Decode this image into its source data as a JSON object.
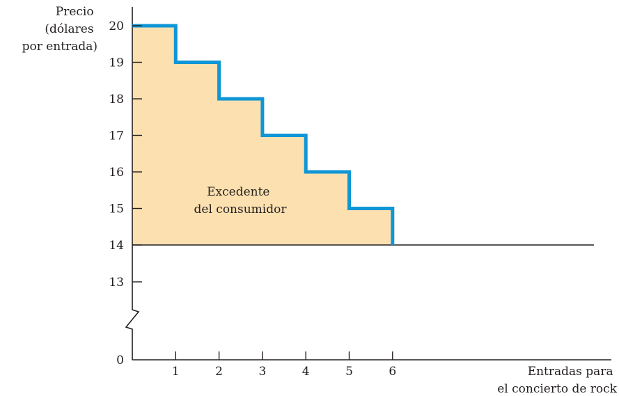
{
  "chart_data": {
    "type": "area",
    "y_axis_title": [
      "Precio",
      "(dólares",
      "por entrada)"
    ],
    "x_axis_title": [
      "Entradas para",
      "el concierto de rock"
    ],
    "area_label": [
      "Excedente",
      "del consumidor"
    ],
    "y_ticks": [
      0,
      13,
      14,
      15,
      16,
      17,
      18,
      19,
      20
    ],
    "x_ticks": [
      1,
      2,
      3,
      4,
      5,
      6
    ],
    "y_axis_break": true,
    "market_price": 14,
    "demand_steps": [
      {
        "from": 0,
        "to": 1,
        "price": 20
      },
      {
        "from": 1,
        "to": 2,
        "price": 19
      },
      {
        "from": 2,
        "to": 3,
        "price": 18
      },
      {
        "from": 3,
        "to": 4,
        "price": 17
      },
      {
        "from": 4,
        "to": 5,
        "price": 16
      },
      {
        "from": 5,
        "to": 6,
        "price": 15
      }
    ],
    "colors": {
      "demand": "#0f96d6",
      "surplus_fill": "#fce0b0",
      "axis": "#231f20"
    }
  }
}
